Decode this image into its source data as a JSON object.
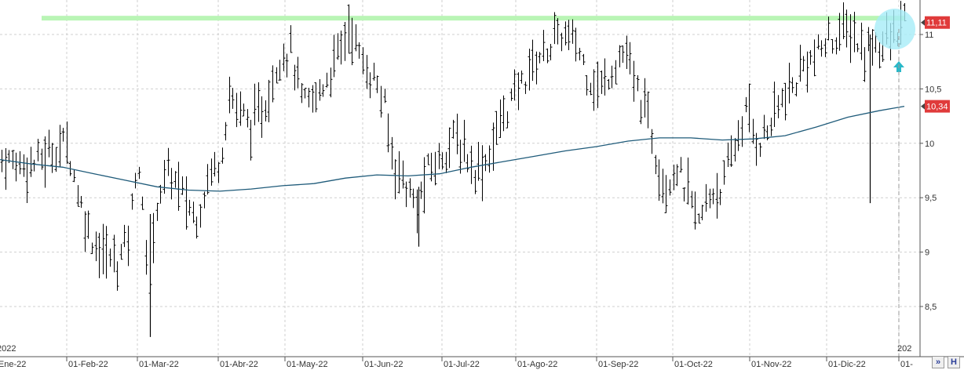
{
  "chart_data": {
    "type": "ohlc",
    "x_start": "2022-01-01",
    "x_tick_labels": [
      "01-Ene-22",
      "01-Feb-22",
      "01-Mar-22",
      "01-Abr-22",
      "01-May-22",
      "01-Jun-22",
      "01-Jul-22",
      "01-Ago-22",
      "01-Sep-22",
      "01-Oct-22",
      "01-Nov-22",
      "01-Dic-22",
      "01-"
    ],
    "year_labels": [
      "2022",
      "202"
    ],
    "y_ticks": [
      "8,5",
      "9",
      "9,5",
      "10",
      "10,5",
      "11"
    ],
    "y_tick_values": [
      8.5,
      9,
      9.5,
      10,
      10.5,
      11
    ],
    "ylim": [
      8.05,
      11.2
    ],
    "price_tags": [
      {
        "label": "11,11",
        "value": 11.11,
        "color": "#e03b3b"
      },
      {
        "label": "10,34",
        "value": 10.34,
        "color": "#e03b3b"
      }
    ],
    "resistance": {
      "value": 11.15,
      "color": "#b9f5b5",
      "start_week": 53,
      "end_week": 1152
    },
    "moving_average": {
      "color": "#1f5b7a",
      "points": [
        [
          0,
          9.85
        ],
        [
          40,
          9.81
        ],
        [
          80,
          9.78
        ],
        [
          120,
          9.72
        ],
        [
          160,
          9.66
        ],
        [
          200,
          9.6
        ],
        [
          240,
          9.57
        ],
        [
          280,
          9.56
        ],
        [
          320,
          9.58
        ],
        [
          360,
          9.61
        ],
        [
          400,
          9.63
        ],
        [
          440,
          9.68
        ],
        [
          480,
          9.71
        ],
        [
          520,
          9.7
        ],
        [
          560,
          9.72
        ],
        [
          600,
          9.78
        ],
        [
          640,
          9.83
        ],
        [
          680,
          9.88
        ],
        [
          720,
          9.93
        ],
        [
          760,
          9.97
        ],
        [
          800,
          10.02
        ],
        [
          840,
          10.05
        ],
        [
          880,
          10.05
        ],
        [
          920,
          10.03
        ],
        [
          960,
          10.04
        ],
        [
          1000,
          10.07
        ],
        [
          1040,
          10.15
        ],
        [
          1080,
          10.24
        ],
        [
          1120,
          10.3
        ],
        [
          1152,
          10.34
        ]
      ]
    },
    "accent_colors": {
      "bars": "#000000",
      "grid": "#c8c8c8",
      "highlight": "#a6ecf7",
      "arrow": "#2ab8c8"
    },
    "vertical_dashed_marker_week": 1145,
    "bars_anchor": [
      [
        0,
        9.85
      ],
      [
        40,
        9.8
      ],
      [
        60,
        9.9
      ],
      [
        85,
        10.02
      ],
      [
        100,
        9.5
      ],
      [
        115,
        9.15
      ],
      [
        130,
        9.0
      ],
      [
        150,
        8.9
      ],
      [
        165,
        9.2
      ],
      [
        175,
        9.95
      ],
      [
        182,
        9.3
      ],
      [
        190,
        8.65
      ],
      [
        200,
        9.5
      ],
      [
        215,
        9.75
      ],
      [
        230,
        9.55
      ],
      [
        250,
        9.3
      ],
      [
        265,
        9.7
      ],
      [
        280,
        9.85
      ],
      [
        292,
        10.45
      ],
      [
        305,
        10.3
      ],
      [
        320,
        10.15
      ],
      [
        340,
        10.4
      ],
      [
        355,
        10.8
      ],
      [
        370,
        10.85
      ],
      [
        385,
        10.35
      ],
      [
        400,
        10.4
      ],
      [
        420,
        10.65
      ],
      [
        435,
        10.9
      ],
      [
        445,
        11.1
      ],
      [
        460,
        10.75
      ],
      [
        480,
        10.55
      ],
      [
        490,
        10.3
      ],
      [
        500,
        9.85
      ],
      [
        515,
        9.65
      ],
      [
        530,
        9.4
      ],
      [
        545,
        9.75
      ],
      [
        560,
        9.85
      ],
      [
        575,
        10.05
      ],
      [
        590,
        9.95
      ],
      [
        605,
        9.75
      ],
      [
        620,
        9.85
      ],
      [
        640,
        10.25
      ],
      [
        660,
        10.5
      ],
      [
        680,
        10.75
      ],
      [
        700,
        10.9
      ],
      [
        715,
        11.0
      ],
      [
        735,
        10.9
      ],
      [
        750,
        10.6
      ],
      [
        765,
        10.5
      ],
      [
        780,
        10.7
      ],
      [
        795,
        10.85
      ],
      [
        810,
        10.5
      ],
      [
        825,
        10.25
      ],
      [
        835,
        9.9
      ],
      [
        848,
        9.6
      ],
      [
        860,
        9.8
      ],
      [
        875,
        9.55
      ],
      [
        890,
        9.25
      ],
      [
        905,
        9.55
      ],
      [
        920,
        9.6
      ],
      [
        935,
        9.95
      ],
      [
        950,
        10.3
      ],
      [
        965,
        10.0
      ],
      [
        980,
        10.15
      ],
      [
        995,
        10.4
      ],
      [
        1010,
        10.5
      ],
      [
        1025,
        10.75
      ],
      [
        1040,
        10.8
      ],
      [
        1055,
        10.95
      ],
      [
        1070,
        11.0
      ],
      [
        1085,
        11.05
      ],
      [
        1100,
        10.8
      ],
      [
        1110,
        10.95
      ],
      [
        1125,
        10.9
      ],
      [
        1140,
        11.0
      ],
      [
        1155,
        11.12
      ]
    ]
  }
}
